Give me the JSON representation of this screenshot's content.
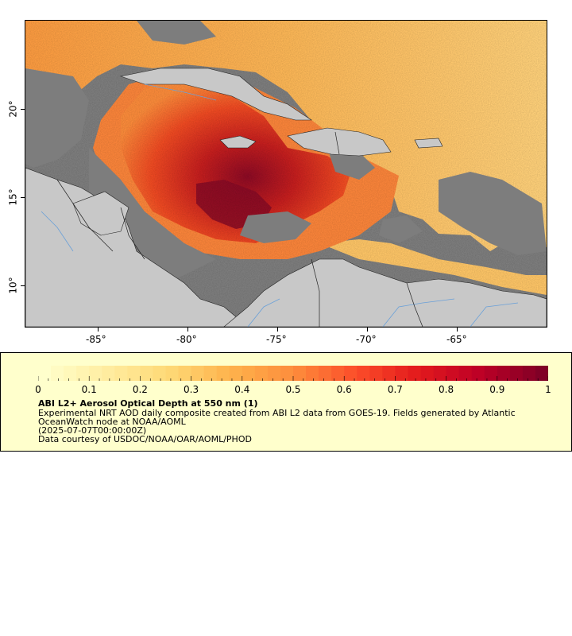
{
  "map": {
    "lon_ticks": [
      "-85°",
      "-80°",
      "-75°",
      "-70°",
      "-65°"
    ],
    "lat_ticks": [
      "20°",
      "15°",
      "10°"
    ],
    "colors": {
      "ocean_no_data": "#7d7d7d",
      "land": "#c8c8c8",
      "border": "#222222",
      "river": "#6aa0d8"
    }
  },
  "legend": {
    "colorbar_labels": [
      "0",
      "0.1",
      "0.2",
      "0.3",
      "0.4",
      "0.5",
      "0.6",
      "0.7",
      "0.8",
      "0.9",
      "1"
    ],
    "colorbar_range": [
      0,
      1
    ],
    "colorbar_colors": [
      "#ffffcc",
      "#ffeda0",
      "#fed976",
      "#feb24c",
      "#fd8d3c",
      "#fc4e2a",
      "#e31a1c",
      "#bd0026",
      "#800026"
    ],
    "title": "ABI L2+ Aerosol Optical Depth at 550 nm (1)",
    "description_line1": "Experimental NRT AOD daily composite created from ABI L2 data from GOES-19. Fields generated by Atlantic",
    "description_line2": "OceanWatch node at NOAA/AOML",
    "date": "(2025-07-07T00:00:00Z)",
    "credit": "Data courtesy of USDOC/NOAA/OAR/AOML/PHOD"
  }
}
